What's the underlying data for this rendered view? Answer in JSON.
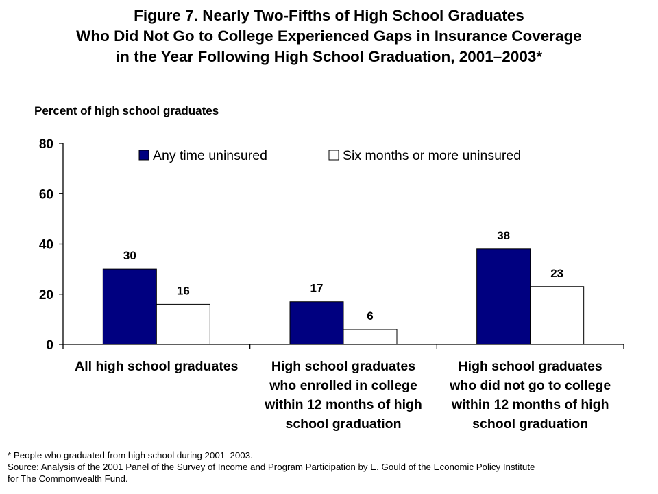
{
  "title_lines": [
    "Figure 7. Nearly Two-Fifths of High School Graduates",
    "Who Did Not Go to College Experienced Gaps in Insurance Coverage",
    "in the Year Following High School Graduation, 2001–2003*"
  ],
  "footnotes": [
    "* People who graduated from high school during 2001–2003.",
    "Source: Analysis of the 2001 Panel of the Survey of Income and Program Participation by E. Gould of the Economic Policy Institute",
    "for The Commonwealth Fund."
  ],
  "chart_data": {
    "type": "bar",
    "ylabel": "Percent of high school graduates",
    "ylim": [
      0,
      80
    ],
    "yticks": [
      0,
      20,
      40,
      60,
      80
    ],
    "grid": false,
    "legend_position": "top",
    "categories": [
      [
        "All high school graduates"
      ],
      [
        "High school graduates",
        "who enrolled in college",
        "within 12 months of high",
        "school graduation"
      ],
      [
        "High school graduates",
        "who did not go to college",
        "within 12 months of high",
        "school graduation"
      ]
    ],
    "series": [
      {
        "name": "Any time uninsured",
        "color": "#000080",
        "values": [
          30,
          17,
          38
        ]
      },
      {
        "name": "Six months or more uninsured",
        "color": "#ffffff",
        "values": [
          16,
          6,
          23
        ]
      }
    ]
  }
}
